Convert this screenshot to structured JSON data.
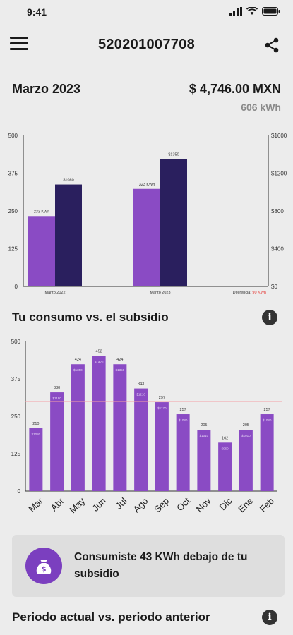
{
  "status": {
    "time": "9:41"
  },
  "header": {
    "title": "520201007708"
  },
  "summary": {
    "period": "Marzo 2023",
    "amount": "$ 4,746.00 MXN",
    "kwh": "606 kWh"
  },
  "comparison_chart": {
    "type": "bar",
    "categories": [
      "Marzo 2022",
      "Marzo 2023"
    ],
    "series": [
      {
        "name": "kWh",
        "values": [
          233,
          323
        ],
        "labels": [
          "233 KWh",
          "323 KWh"
        ],
        "color": "#8a4bc4"
      },
      {
        "name": "MXN",
        "values": [
          1080,
          1350
        ],
        "labels": [
          "$1080",
          "$1350"
        ],
        "color": "#2a1f5e"
      }
    ],
    "y_left_ticks": [
      "0",
      "125",
      "250",
      "375",
      "500"
    ],
    "y_left_range": [
      0,
      500
    ],
    "y_right_ticks": [
      "$0",
      "$400",
      "$800",
      "$1200",
      "$1600"
    ],
    "y_right_range": [
      0,
      1600
    ],
    "difference_label": "Diferencia:",
    "difference_value": "90 KWh",
    "difference_color": "#e53935"
  },
  "consumption_section": {
    "title": "Tu consumo vs. el subsidio"
  },
  "chart_data": {
    "type": "bar",
    "categories": [
      "Mar",
      "Abr",
      "May",
      "Jun",
      "Jul",
      "Ago",
      "Sep",
      "Oct",
      "Nov",
      "Dic",
      "Ene",
      "Feb"
    ],
    "values": [
      210,
      330,
      424,
      452,
      424,
      343,
      297,
      257,
      205,
      162,
      205,
      257
    ],
    "labels": [
      "210",
      "330",
      "424",
      "452",
      "424",
      "343",
      "297",
      "257",
      "205",
      "162",
      "205",
      "257"
    ],
    "sublabels": [
      "$1080",
      "$1190",
      "$1350",
      "$1420",
      "$1350",
      "$1210",
      "$1170",
      "$1080",
      "$1010",
      "$960",
      "$1010",
      "$1080"
    ],
    "ylim": [
      0,
      500
    ],
    "y_ticks": [
      "0",
      "125",
      "250",
      "375",
      "500"
    ],
    "subsidy_line": 300,
    "bar_color": "#8a4bc4",
    "subsidy_line_color": "#f4a0a6"
  },
  "subsidy_card": {
    "message": "Consumiste 43 KWh debajo de tu subsidio",
    "icon": "money-bag-icon",
    "accent": "#7b3fbf"
  },
  "period_section": {
    "title": "Periodo actual vs. periodo anterior"
  }
}
